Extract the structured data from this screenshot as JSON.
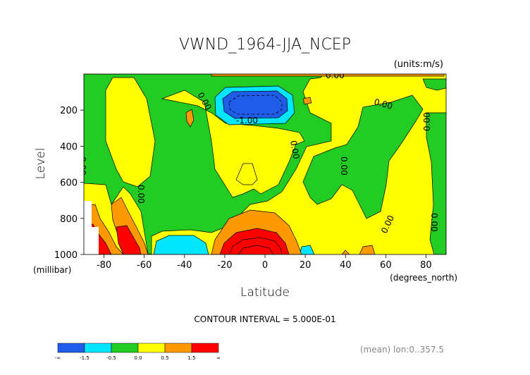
{
  "chart_data": {
    "type": "heatmap",
    "title": "VWND_1964-JJA_NCEP",
    "units": "(units:m/s)",
    "xlabel": "Latitude",
    "xunit": "(degrees_north)",
    "ylabel": "Level",
    "yunit": "(millibar)",
    "xlim": [
      -90,
      90
    ],
    "ylim": [
      1000,
      0
    ],
    "xticks": [
      "-80",
      "-60",
      "-40",
      "-20",
      "0",
      "20",
      "40",
      "60",
      "80"
    ],
    "yticks": [
      "200",
      "400",
      "600",
      "800",
      "1000"
    ],
    "contour_interval_text": "CONTOUR INTERVAL = 5.000E-01",
    "footer_text": "(mean) lon:0..357.5",
    "contour_labels": [
      "0.00",
      "0.00",
      "0.00",
      "0.00",
      "0.00",
      "0.00",
      "0.00",
      "0.00",
      "0.00",
      "0.00",
      "-1.00"
    ],
    "colorbar": {
      "labels": [
        "-∞",
        "-1.5",
        "-0.5",
        "0.0",
        "0.5",
        "1.5",
        "∞"
      ],
      "colors": [
        "#1f5de8",
        "#00e6ff",
        "#22cc22",
        "#ffff00",
        "#ff9900",
        "#ff0000"
      ]
    }
  }
}
